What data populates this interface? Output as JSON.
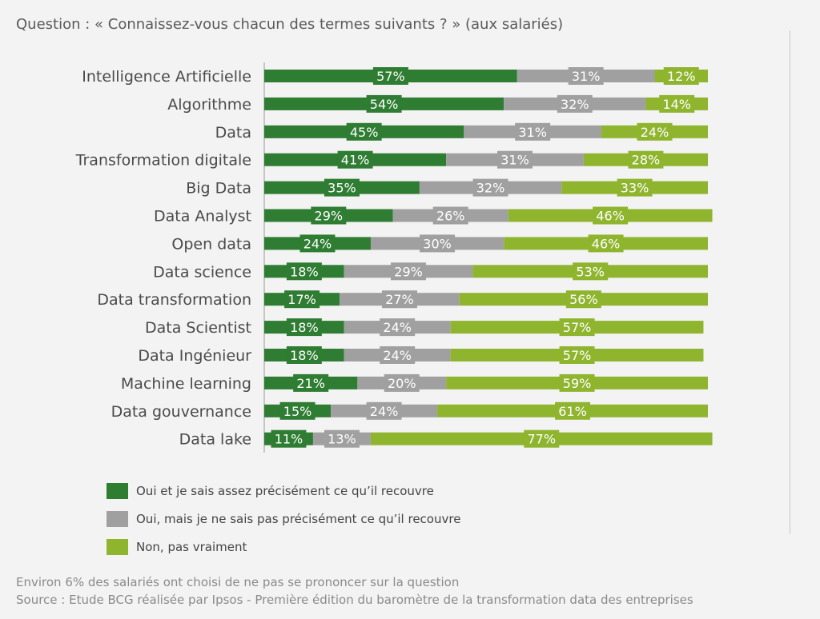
{
  "question": "Question : « Connaissez-vous chacun des termes suivants ? » (aux salariés)",
  "footnote": "Environ 6% des salariés ont choisi de ne pas se prononcer sur la question",
  "source": "Source : Etude BCG réalisée par Ipsos - Première édition du baromètre de la transformation data des entreprises",
  "colors": {
    "oui_precis": "#2e7d32",
    "oui_pas_precis": "#a0a0a0",
    "non": "#8fb52f",
    "label_box_dark": "#2e7d32",
    "label_box_grey": "#a0a0a0",
    "label_box_light": "#8fb52f"
  },
  "legend": [
    {
      "label": "Oui et je sais assez précisément ce qu’il recouvre",
      "color": "#2e7d32"
    },
    {
      "label": "Oui, mais je ne sais pas précisément ce qu’il recouvre",
      "color": "#a0a0a0"
    },
    {
      "label": "Non, pas vraiment",
      "color": "#8fb52f"
    }
  ],
  "chart_data": {
    "type": "bar",
    "orientation": "horizontal",
    "stacked": true,
    "unit": "%",
    "categories": [
      "Intelligence Artificielle",
      "Algorithme",
      "Data",
      "Transformation digitale",
      "Big Data",
      "Data Analyst",
      "Open data",
      "Data science",
      "Data transformation",
      "Data Scientist",
      "Data Ingénieur",
      "Machine learning",
      "Data gouvernance",
      "Data lake"
    ],
    "series": [
      {
        "name": "Oui et je sais assez précisément ce qu’il recouvre",
        "values": [
          57,
          54,
          45,
          41,
          35,
          29,
          24,
          18,
          17,
          18,
          18,
          21,
          15,
          11
        ]
      },
      {
        "name": "Oui, mais je ne sais pas précisément ce qu’il recouvre",
        "values": [
          31,
          32,
          31,
          31,
          32,
          26,
          30,
          29,
          27,
          24,
          24,
          20,
          24,
          13
        ]
      },
      {
        "name": "Non, pas vraiment",
        "values": [
          12,
          14,
          24,
          28,
          33,
          46,
          46,
          53,
          56,
          57,
          57,
          59,
          61,
          77
        ]
      }
    ],
    "xlim": [
      0,
      100
    ],
    "grid": false,
    "legend_position": "bottom-left"
  }
}
